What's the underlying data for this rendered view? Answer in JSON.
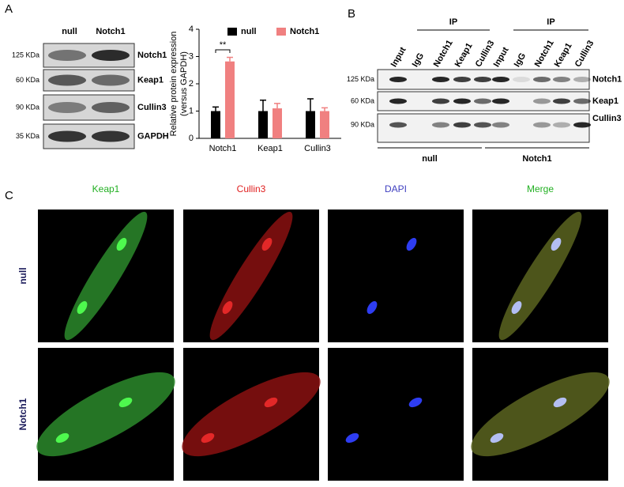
{
  "panel_a": {
    "label": "A",
    "lanes": [
      "null",
      "Notch1"
    ],
    "rows": [
      {
        "marker": "125 KDa",
        "protein": "Notch1"
      },
      {
        "marker": "60 KDa",
        "protein": "Keap1"
      },
      {
        "marker": "90 KDa",
        "protein": "Cullin3"
      },
      {
        "marker": "35 KDa",
        "protein": "GAPDH"
      }
    ]
  },
  "chart_data": {
    "type": "bar",
    "ylabel": [
      "Relative protein expression",
      "(versus GAPDH)"
    ],
    "categories": [
      "Notch1",
      "Keap1",
      "Cullin3"
    ],
    "series": [
      {
        "name": "null",
        "color": "#000000",
        "values": [
          1,
          1,
          1
        ],
        "errors": [
          0.15,
          0.4,
          0.45
        ]
      },
      {
        "name": "Notch1",
        "color": "#f08080",
        "values": [
          2.82,
          1.1,
          1.0
        ],
        "errors": [
          0.15,
          0.18,
          0.12
        ]
      }
    ],
    "ylim": [
      0,
      4
    ],
    "yticks": [
      0,
      1,
      2,
      3,
      4
    ],
    "legend": "top",
    "annotation": "**"
  },
  "panel_b": {
    "label": "B",
    "ip_groups": [
      "IP",
      "IP"
    ],
    "lanes": [
      "Input",
      "IgG",
      "Notch1",
      "Keap1",
      "Cullin3",
      "Input",
      "IgG",
      "Notch1",
      "Keap1",
      "Cullin3"
    ],
    "rows": [
      {
        "marker": "125 KDa",
        "protein": "Notch1"
      },
      {
        "marker": "60 KDa",
        "protein": "Keap1"
      },
      {
        "marker": "90 KDa",
        "protein": "Cullin3"
      }
    ],
    "groups": [
      "null",
      "Notch1"
    ]
  },
  "panel_c": {
    "label": "C",
    "columns": [
      "Keap1",
      "Cullin3",
      "DAPI",
      "Merge"
    ],
    "rows": [
      "null",
      "Notch1"
    ]
  }
}
